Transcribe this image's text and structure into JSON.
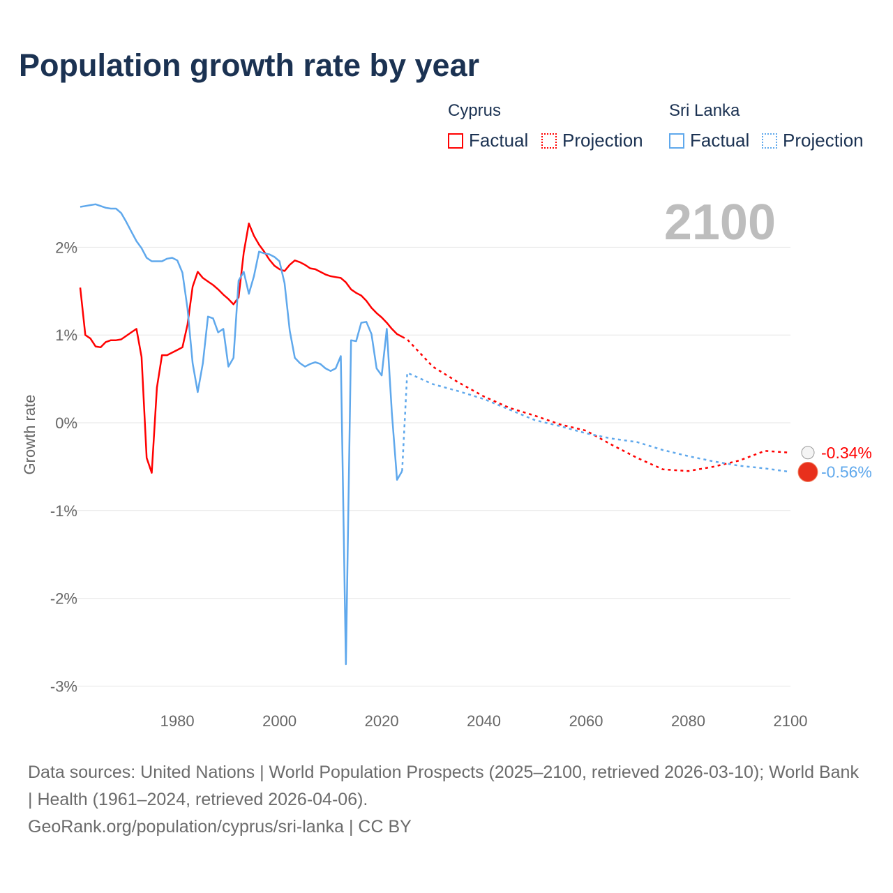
{
  "title": "Population growth rate by year",
  "legend": {
    "groups": [
      {
        "name": "Cyprus",
        "factual": "Factual",
        "projection": "Projection"
      },
      {
        "name": "Sri Lanka",
        "factual": "Factual",
        "projection": "Projection"
      }
    ]
  },
  "footer": {
    "line1": "Data sources: United Nations | World Population Prospects (2025–2100, retrieved 2026-03-10); World Bank | Health (1961–2024, retrieved 2026-04-06).",
    "line2": "GeoRank.org/population/cyprus/sri-lanka | CC BY"
  },
  "chart_data": {
    "type": "line",
    "title": "Population growth rate by year",
    "year_label": "2100",
    "ylabel": "Growth rate",
    "xlabel": "",
    "xlim": [
      1961,
      2100
    ],
    "ylim": [
      -3.2,
      2.6
    ],
    "x_ticks": [
      1980,
      2000,
      2020,
      2040,
      2060,
      2080,
      2100
    ],
    "y_ticks": [
      2,
      1,
      0,
      -1,
      -2,
      -3
    ],
    "y_tick_labels": [
      "2%",
      "1%",
      "0%",
      "-1%",
      "-2%",
      "-3%"
    ],
    "grid": true,
    "legend_position": "top-right",
    "series": [
      {
        "name": "Cyprus",
        "color": "#ff0000",
        "end_label": "-0.34%",
        "factual": {
          "x": [
            1961,
            1962,
            1963,
            1964,
            1965,
            1966,
            1967,
            1968,
            1969,
            1970,
            1971,
            1972,
            1973,
            1974,
            1975,
            1976,
            1977,
            1978,
            1979,
            1980,
            1981,
            1982,
            1983,
            1984,
            1985,
            1986,
            1987,
            1988,
            1989,
            1990,
            1991,
            1992,
            1993,
            1994,
            1995,
            1996,
            1997,
            1998,
            1999,
            2000,
            2001,
            2002,
            2003,
            2004,
            2005,
            2006,
            2007,
            2008,
            2009,
            2010,
            2011,
            2012,
            2013,
            2014,
            2015,
            2016,
            2017,
            2018,
            2019,
            2020,
            2021,
            2022,
            2023,
            2024
          ],
          "y": [
            1.54,
            1.0,
            0.96,
            0.87,
            0.86,
            0.92,
            0.94,
            0.94,
            0.95,
            0.99,
            1.03,
            1.07,
            0.75,
            -0.4,
            -0.57,
            0.4,
            0.77,
            0.77,
            0.8,
            0.83,
            0.86,
            1.12,
            1.55,
            1.72,
            1.65,
            1.61,
            1.57,
            1.52,
            1.46,
            1.41,
            1.35,
            1.43,
            1.94,
            2.27,
            2.13,
            2.03,
            1.95,
            1.86,
            1.79,
            1.75,
            1.73,
            1.8,
            1.85,
            1.83,
            1.8,
            1.76,
            1.75,
            1.72,
            1.69,
            1.67,
            1.66,
            1.65,
            1.6,
            1.52,
            1.48,
            1.45,
            1.39,
            1.31,
            1.25,
            1.2,
            1.14,
            1.07,
            1.01,
            0.98
          ]
        },
        "projection": {
          "x": [
            2024,
            2025,
            2030,
            2035,
            2040,
            2045,
            2050,
            2055,
            2060,
            2065,
            2070,
            2075,
            2080,
            2085,
            2090,
            2095,
            2100
          ],
          "y": [
            0.98,
            0.95,
            0.64,
            0.46,
            0.3,
            0.17,
            0.08,
            -0.02,
            -0.09,
            -0.25,
            -0.4,
            -0.53,
            -0.55,
            -0.5,
            -0.43,
            -0.32,
            -0.34
          ]
        }
      },
      {
        "name": "Sri Lanka",
        "color": "#5fa8ec",
        "end_label": "-0.56%",
        "factual": {
          "x": [
            1961,
            1962,
            1963,
            1964,
            1965,
            1966,
            1967,
            1968,
            1969,
            1970,
            1971,
            1972,
            1973,
            1974,
            1975,
            1976,
            1977,
            1978,
            1979,
            1980,
            1981,
            1982,
            1983,
            1984,
            1985,
            1986,
            1987,
            1988,
            1989,
            1990,
            1991,
            1992,
            1993,
            1994,
            1995,
            1996,
            1997,
            1998,
            1999,
            2000,
            2001,
            2002,
            2003,
            2004,
            2005,
            2006,
            2007,
            2008,
            2009,
            2010,
            2011,
            2012,
            2013,
            2014,
            2015,
            2016,
            2017,
            2018,
            2019,
            2020,
            2021,
            2022,
            2023,
            2024
          ],
          "y": [
            2.46,
            2.47,
            2.48,
            2.49,
            2.47,
            2.45,
            2.44,
            2.44,
            2.39,
            2.29,
            2.18,
            2.07,
            1.99,
            1.88,
            1.84,
            1.84,
            1.84,
            1.87,
            1.88,
            1.85,
            1.71,
            1.3,
            0.68,
            0.35,
            0.68,
            1.21,
            1.19,
            1.03,
            1.07,
            0.64,
            0.74,
            1.62,
            1.72,
            1.47,
            1.67,
            1.95,
            1.93,
            1.92,
            1.89,
            1.84,
            1.59,
            1.05,
            0.74,
            0.68,
            0.64,
            0.67,
            0.69,
            0.67,
            0.62,
            0.59,
            0.62,
            0.76,
            -2.75,
            0.94,
            0.93,
            1.14,
            1.15,
            1.01,
            0.62,
            0.54,
            1.07,
            0.11,
            -0.65,
            -0.55
          ]
        },
        "projection": {
          "x": [
            2024,
            2025,
            2030,
            2035,
            2040,
            2045,
            2050,
            2055,
            2060,
            2065,
            2070,
            2075,
            2080,
            2085,
            2090,
            2095,
            2100
          ],
          "y": [
            -0.55,
            0.57,
            0.44,
            0.36,
            0.27,
            0.15,
            0.03,
            -0.04,
            -0.12,
            -0.18,
            -0.22,
            -0.31,
            -0.38,
            -0.44,
            -0.49,
            -0.52,
            -0.56
          ]
        }
      }
    ]
  }
}
